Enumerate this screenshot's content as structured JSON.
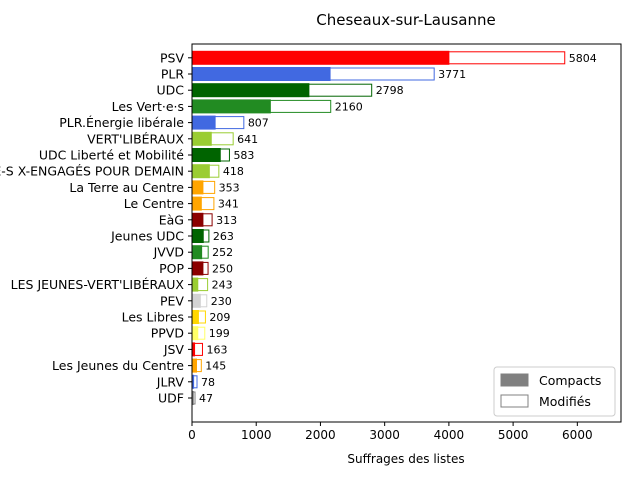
{
  "chart_data": {
    "type": "bar",
    "orientation": "horizontal",
    "stacked": true,
    "title": "Cheseaux-sur-Lausanne",
    "xlabel": "Suffrages des listes",
    "ylabel": "",
    "xlim": [
      0,
      6680
    ],
    "xticks": [
      0,
      1000,
      2000,
      3000,
      4000,
      5000,
      6000
    ],
    "grid": false,
    "legend_position": "lower-right",
    "legend": [
      {
        "name": "Compacts",
        "style": "filled",
        "color": "#808080"
      },
      {
        "name": "Modifiés",
        "style": "outline",
        "color": "#808080"
      }
    ],
    "categories": [
      "PSV",
      "PLR",
      "UDC",
      "Les Vert·e·s",
      "PLR.Énergie libérale",
      "VERT'LIBÉRAUX",
      "UDC Liberté et Mobilité",
      "LES VERT-E-S X-ENGAGÉS POUR DEMAIN",
      "La Terre au Centre",
      "Le Centre",
      "EàG",
      "Jeunes UDC",
      "JVVD",
      "POP",
      "LES JEUNES-VERT'LIBÉRAUX",
      "PEV",
      "Les Libres",
      "PPVD",
      "JSV",
      "Les Jeunes du Centre",
      "JLRV",
      "UDF"
    ],
    "colors": [
      "#ff0000",
      "#4169e1",
      "#006400",
      "#228b22",
      "#4169e1",
      "#9acd32",
      "#006400",
      "#9acd32",
      "#ffa500",
      "#ffa500",
      "#8b0000",
      "#006400",
      "#228b22",
      "#8b0000",
      "#9acd32",
      "#d3d3d3",
      "#ffd700",
      "#ffff66",
      "#ff0000",
      "#ffa500",
      "#4169e1",
      "#808080"
    ],
    "series": [
      {
        "name": "Compacts",
        "values": [
          4000,
          2150,
          1820,
          1220,
          360,
          300,
          440,
          270,
          170,
          145,
          170,
          175,
          150,
          170,
          90,
          130,
          100,
          90,
          40,
          70,
          25,
          20
        ]
      },
      {
        "name": "Modifiés",
        "values": [
          1804,
          1621,
          978,
          940,
          447,
          341,
          143,
          148,
          183,
          196,
          143,
          88,
          102,
          80,
          153,
          100,
          109,
          109,
          123,
          75,
          53,
          27
        ]
      }
    ],
    "totals": [
      5804,
      3771,
      2798,
      2160,
      807,
      641,
      583,
      418,
      353,
      341,
      313,
      263,
      252,
      250,
      243,
      230,
      209,
      199,
      163,
      145,
      78,
      47
    ]
  }
}
